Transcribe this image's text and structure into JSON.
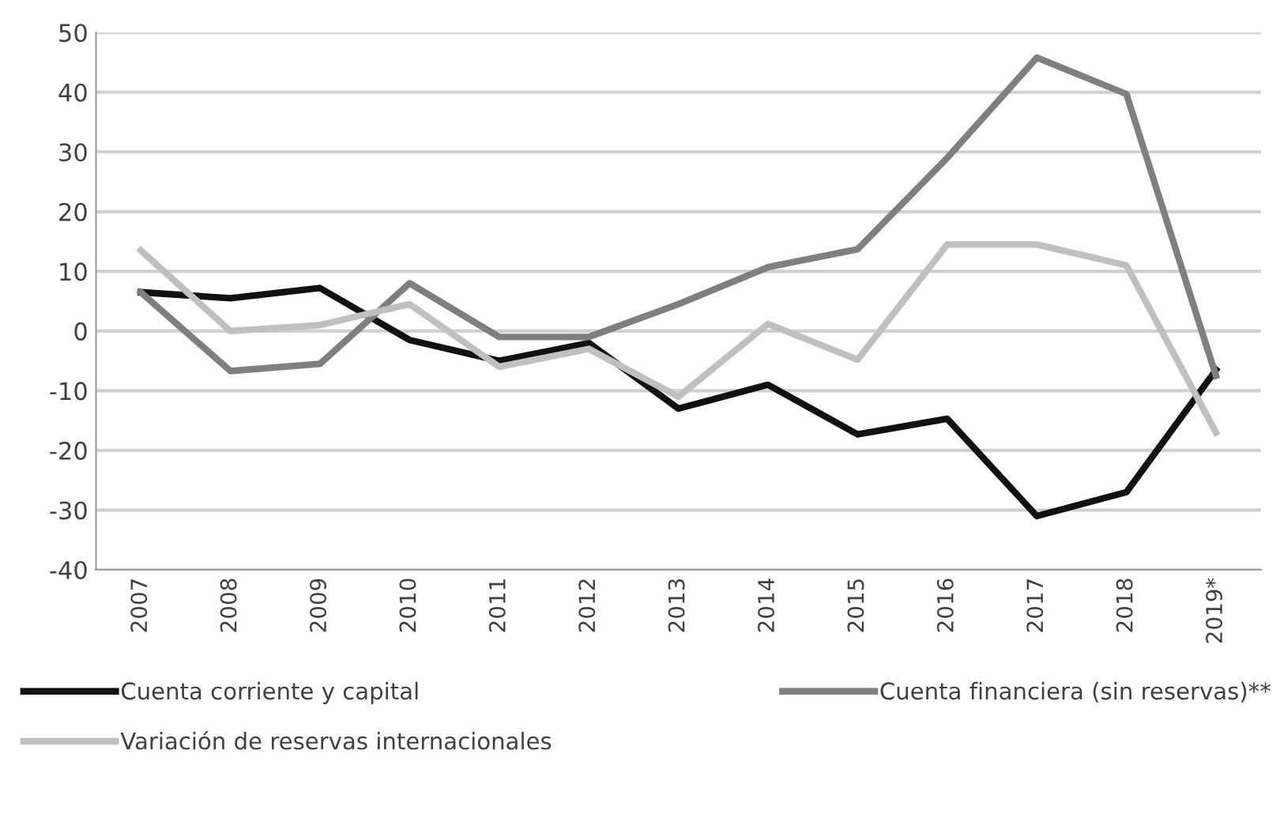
{
  "chart_data": {
    "type": "line",
    "categories": [
      "2007",
      "2008",
      "2009",
      "2010",
      "2011",
      "2012",
      "2013",
      "2014",
      "2015",
      "2016",
      "2017",
      "2018",
      "2019*"
    ],
    "series": [
      {
        "name": "Cuenta corriente y capital",
        "color": "#111111",
        "values": [
          6.5,
          5.5,
          7.2,
          -1.5,
          -5,
          -2,
          -13,
          -9,
          -17.3,
          -14.7,
          -31,
          -27,
          -6.5
        ]
      },
      {
        "name": "Cuenta financiera (sin reservas)**",
        "color": "#7f7f7f",
        "values": [
          6.5,
          -6.7,
          -5.5,
          8,
          -1,
          -1,
          4.5,
          10.7,
          13.7,
          29,
          45.8,
          39.7,
          -7.5
        ]
      },
      {
        "name": "Variación de reservas internacionales",
        "color": "#c0c0c0",
        "values": [
          13.5,
          0,
          1,
          4.5,
          -6,
          -3,
          -11,
          1.2,
          -4.8,
          14.5,
          14.5,
          11,
          -17
        ]
      }
    ],
    "ylim": [
      -40,
      50
    ],
    "yticks": [
      -40,
      -30,
      -20,
      -10,
      0,
      10,
      20,
      30,
      40,
      50
    ],
    "grid": "y",
    "legend": "bottom",
    "marker": "none",
    "line_style": "solid"
  }
}
